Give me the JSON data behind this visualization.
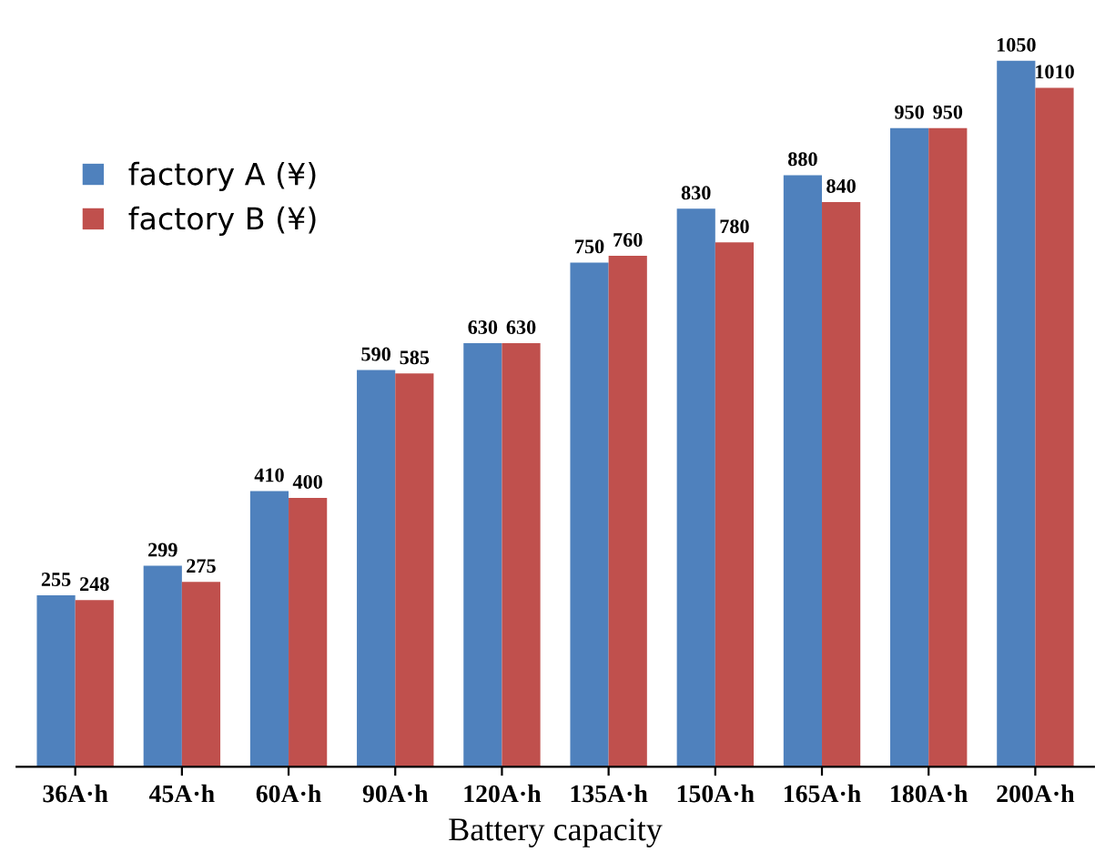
{
  "chart_data": {
    "type": "bar",
    "xlabel": "Battery capacity",
    "categories": [
      "36A·h",
      "45A·h",
      "60A·h",
      "90A·h",
      "120A·h",
      "135A·h",
      "150A·h",
      "165A·h",
      "180A·h",
      "200A·h"
    ],
    "series": [
      {
        "name": "factory A (¥)",
        "color": "#4f81bd",
        "values": [
          255,
          299,
          410,
          590,
          630,
          750,
          830,
          880,
          950,
          1050
        ]
      },
      {
        "name": "factory B (¥)",
        "color": "#c0504d",
        "values": [
          248,
          275,
          400,
          585,
          630,
          760,
          780,
          840,
          950,
          1010
        ]
      }
    ],
    "data_labels": true,
    "legend": "top left",
    "grid": false,
    "tick_labels": "x"
  }
}
